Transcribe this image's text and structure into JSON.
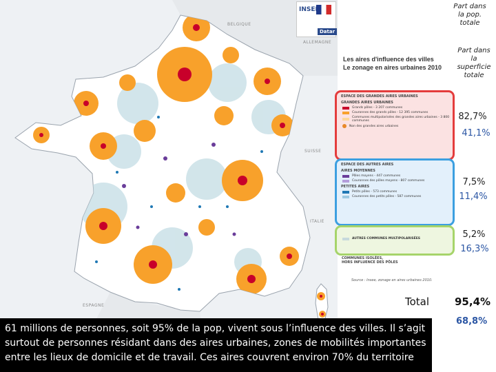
{
  "logos": {
    "insee": "INSEE",
    "datar": "Datar"
  },
  "countries": {
    "belgique": "BELGIQUE",
    "allemagne": "ALLEMAGNE",
    "suisse": "SUISSE",
    "italie": "ITALIE",
    "espagne": "ESPAGNE"
  },
  "map_title": {
    "line1": "Les aires d'influence des villes",
    "line2": "Le zonage en aires urbaines 2010"
  },
  "legend": {
    "grandes": {
      "head1": "ESPACE DES GRANDES AIRES URBAINES",
      "head2": "GRANDES AIRES URBAINES",
      "items": [
        {
          "label": "Grands pôles - 3 207 communes",
          "color": "#c8002a"
        },
        {
          "label": "Couronnes des grands pôles - 12 395 communes",
          "color": "#f8a12b"
        },
        {
          "label": "Communes multipolarisées des grandes aires urbaines - 3 800 communes",
          "color": "#fdd79a"
        },
        {
          "label": "Non des grandes aires urbaines",
          "color": "#e8892a"
        }
      ]
    },
    "autres": {
      "head1": "ESPACE DES AUTRES AIRES",
      "head2": "AIRES MOYENNES",
      "items": [
        {
          "label": "Pôles moyens - 447 communes",
          "color": "#6a3d9a"
        },
        {
          "label": "Couronnes des pôles moyens - 807 communes",
          "color": "#b39ddb"
        }
      ],
      "head3": "PETITES AIRES",
      "items2": [
        {
          "label": "Petits pôles - 573 communes",
          "color": "#1f78b4"
        },
        {
          "label": "Couronnes des petits pôles - 587 communes",
          "color": "#9ecae1"
        }
      ]
    },
    "multi": {
      "label": "AUTRES COMMUNES MULTIPOLARISÉES",
      "color": "#c7d9dc"
    },
    "isolees": {
      "line1": "COMMUNES ISOLÉES,",
      "line2": "HORS INFLUENCE DES PÔLES"
    },
    "source": "Source : Insee, zonage en aires urbaines 2010."
  },
  "headers": {
    "pop": "Part dans la pop. totale",
    "sup": "Part dans la superficie totale"
  },
  "rows": [
    {
      "pop": "82,7%",
      "sup": "41,1%"
    },
    {
      "pop": "7,5%",
      "sup": "11,4%"
    },
    {
      "pop": "5,2%",
      "sup": "16,3%"
    }
  ],
  "total": {
    "label": "Total",
    "pop": "95,4%",
    "sup": "68,8%"
  },
  "caption": "61 millions de personnes, soit 95% de la pop, vivent sous l’influence des villes. Il s’agit surtout de personnes résidant dans des aires urbaines, zones de mobilités importantes entre les lieux de domicile et de travail. Ces aires couvrent environ 70% du territoire",
  "colors": {
    "grand_pole": "#c8002a",
    "couronne": "#f8a12b",
    "multipolarise": "#fdd79a",
    "pole_moyen": "#6a3d9a",
    "petit_pole": "#1f78b4",
    "isolee": "#ffffff",
    "accent_blue": "#2b56a4"
  }
}
